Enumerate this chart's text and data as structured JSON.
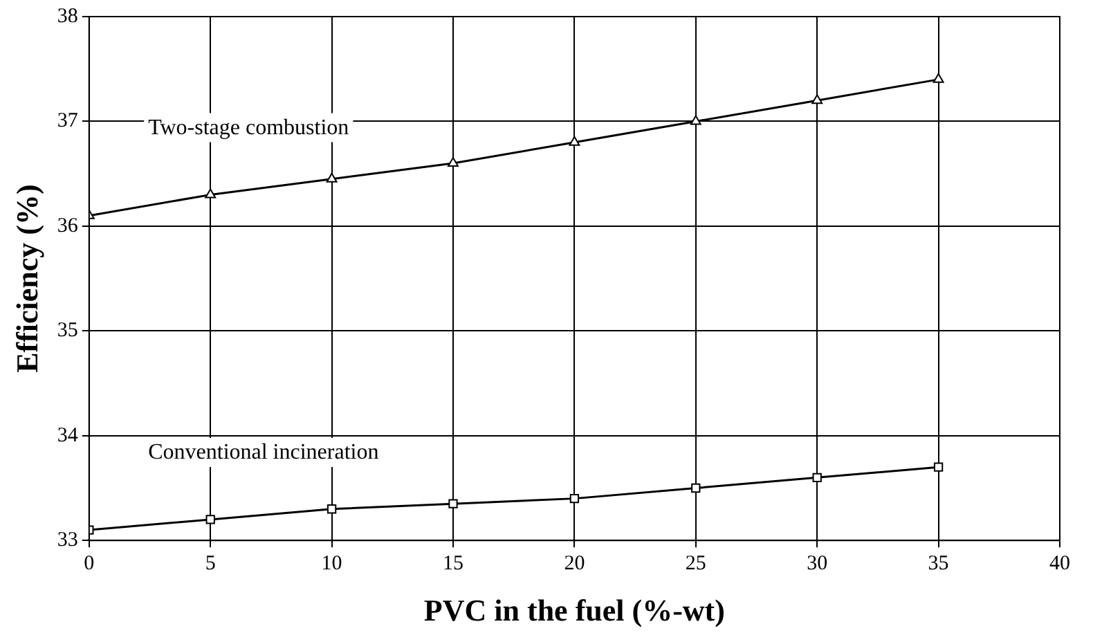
{
  "chart_data": {
    "type": "line",
    "xlabel": "PVC in the fuel (%-wt)",
    "ylabel": "Efficiency (%)",
    "x": [
      0,
      5,
      10,
      15,
      20,
      25,
      30,
      35
    ],
    "series": [
      {
        "name": "Two-stage combustion",
        "color": "#000000",
        "marker": "triangle",
        "values": [
          36.1,
          36.3,
          36.45,
          36.6,
          36.8,
          37.0,
          37.2,
          37.4
        ]
      },
      {
        "name": "Conventional incineration",
        "color": "#000000",
        "marker": "square",
        "values": [
          33.1,
          33.2,
          33.3,
          33.35,
          33.4,
          33.5,
          33.6,
          33.7
        ]
      }
    ],
    "xlim": [
      0,
      40
    ],
    "xticks": [
      0,
      5,
      10,
      15,
      20,
      25,
      30,
      35,
      40
    ],
    "ylim": [
      33,
      38
    ],
    "yticks": [
      33,
      34,
      35,
      36,
      37,
      38
    ],
    "grid": true,
    "legend": false,
    "line_style": "solid"
  }
}
